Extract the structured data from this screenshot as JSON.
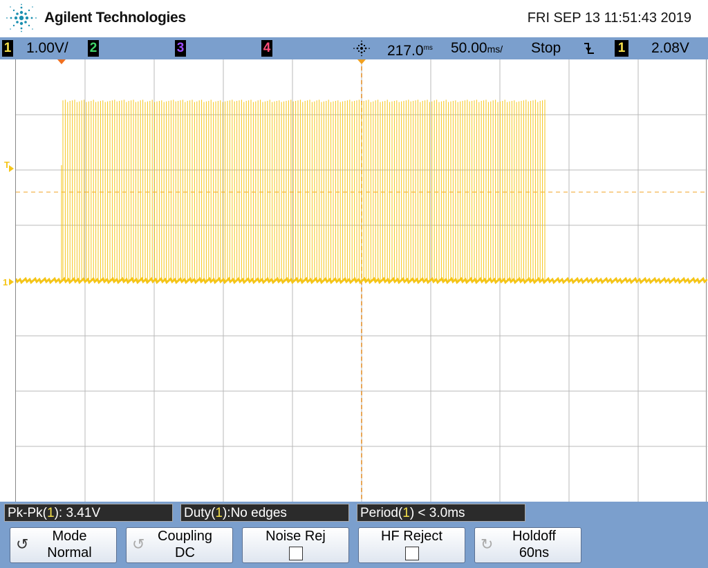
{
  "header": {
    "brand": "Agilent Technologies",
    "datetime": "FRI SEP 13 11:51:43 2019"
  },
  "status_bar": {
    "ch1_num": "1",
    "ch1_scale": "1.00V/",
    "ch2_num": "2",
    "ch3_num": "3",
    "ch4_num": "4",
    "time_delay": "217.0",
    "time_delay_unit": "ms",
    "time_scale": "50.00",
    "time_scale_unit": "ms/",
    "run_state": "Stop",
    "trigger_slope_icon": "falling-edge-icon",
    "trigger_source": "1",
    "trigger_level": "2.08V",
    "colors": {
      "ch1": "#f5e04a",
      "ch2": "#3fd46a",
      "ch3": "#9b4dff",
      "ch4": "#ff4d7a"
    }
  },
  "screen": {
    "trigger_marker_label": "T",
    "ch1_ground_label": "1",
    "waveform_color": "#f5c518"
  },
  "measurements": [
    {
      "prefix": "Pk-Pk(",
      "ch": "1",
      "suffix": "): 3.41V"
    },
    {
      "prefix": "Duty(",
      "ch": "1",
      "suffix": "):No edges"
    },
    {
      "prefix": "Period(",
      "ch": "1",
      "suffix": ") < 3.0ms"
    }
  ],
  "softkeys": {
    "mode_label": "Mode",
    "mode_value": "Normal",
    "coupling_label": "Coupling",
    "coupling_value": "DC",
    "noise_rej_label": "Noise Rej",
    "hf_reject_label": "HF Reject",
    "holdoff_label": "Holdoff",
    "holdoff_value": "60ns"
  }
}
